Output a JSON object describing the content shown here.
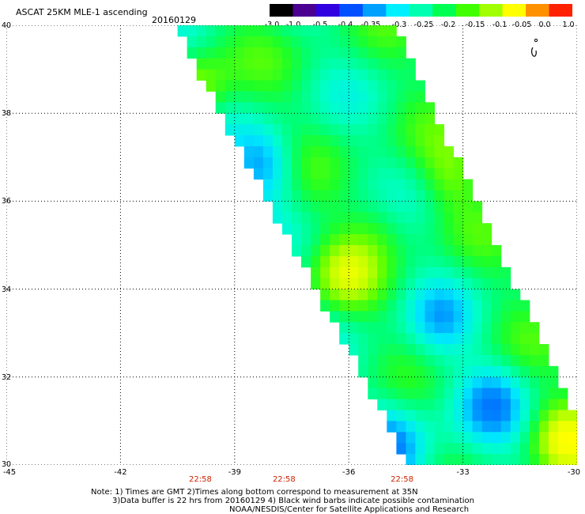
{
  "header": {
    "title": "ASCAT 25KM MLE-1 ascending",
    "date": "20160129"
  },
  "colorbar": {
    "labels": [
      "-3.0",
      "-1.0",
      "-0.5",
      "-0.4",
      "-0.35",
      "-0.3",
      "-0.25",
      "-0.2",
      "-0.15",
      "-0.1",
      "-0.05",
      "0.0",
      "1.0"
    ],
    "colors": [
      "#000000",
      "#4a0090",
      "#3000e0",
      "#0050ff",
      "#00a0ff",
      "#00f0ff",
      "#00ffb0",
      "#00ff50",
      "#40ff00",
      "#a0ff00",
      "#ffff00",
      "#ff9000",
      "#ff2000"
    ]
  },
  "axes": {
    "x_ticks": [
      "-45",
      "-42",
      "-39",
      "-36",
      "-33",
      "-30"
    ],
    "y_ticks": [
      "40",
      "38",
      "36",
      "34",
      "32",
      "30"
    ],
    "lon_range": [
      -45,
      -30
    ],
    "lat_range": [
      30,
      40
    ]
  },
  "swath": {
    "pass_times": [
      "22:58",
      "22:58",
      "22:58"
    ],
    "anomalies": [
      {
        "lon": -40.0,
        "lat": 38.6,
        "value": -0.12
      },
      {
        "lon": -38.2,
        "lat": 36.8,
        "value": -0.35
      },
      {
        "lon": -36.1,
        "lat": 34.3,
        "value": -0.12
      },
      {
        "lon": -35.2,
        "lat": 35.5,
        "value": -0.17
      },
      {
        "lon": -33.3,
        "lat": 36.6,
        "value": -0.15
      },
      {
        "lon": -32.2,
        "lat": 31.4,
        "value": -0.33
      },
      {
        "lon": -30.3,
        "lat": 30.6,
        "value": -0.08
      },
      {
        "lon": -39.3,
        "lat": 35.5,
        "value": -0.32
      },
      {
        "lon": -34.8,
        "lat": 30.4,
        "value": -0.32
      },
      {
        "lon": -33.6,
        "lat": 33.3,
        "value": -0.3
      }
    ]
  },
  "notes": {
    "line1": "Note: 1) Times are GMT 2)Times along bottom correspond to measurement at 35N",
    "line2": "3)Data buffer is 22 hrs from 20160129 4) Black wind barbs indicate possible contamination",
    "line3": "NOAA/NESDIS/Center for Satellite Applications and Research"
  },
  "legend_icon": "wind-barb-icon"
}
